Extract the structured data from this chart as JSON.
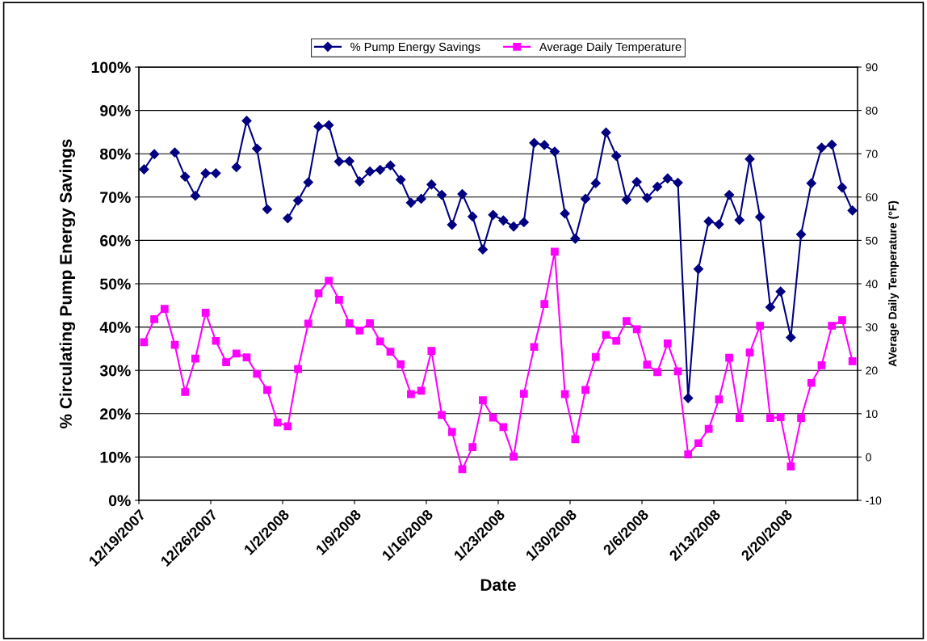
{
  "chart_data": {
    "type": "line",
    "xlabel": "Date",
    "ylabel": "% Circulating Pump Energy Savings",
    "y2label": "AVerage Daily Temperature (°F)",
    "x": [
      "2007-12-19T12:00",
      "2007-12-20T12:00",
      "2007-12-21T12:00",
      "2007-12-22T12:00",
      "2007-12-23T12:00",
      "2007-12-24T12:00",
      "2007-12-25T12:00",
      "2007-12-26T12:00",
      "2007-12-27T12:00",
      "2007-12-28T12:00",
      "2007-12-29T12:00",
      "2007-12-30T12:00",
      "2007-12-31T12:00",
      "2008-01-01T12:00",
      "2008-01-02T12:00",
      "2008-01-03T12:00",
      "2008-01-04T12:00",
      "2008-01-05T12:00",
      "2008-01-06T12:00",
      "2008-01-07T12:00",
      "2008-01-08T12:00",
      "2008-01-09T12:00",
      "2008-01-10T12:00",
      "2008-01-11T12:00",
      "2008-01-12T12:00",
      "2008-01-13T12:00",
      "2008-01-14T12:00",
      "2008-01-15T12:00",
      "2008-01-16T12:00",
      "2008-01-17T12:00",
      "2008-01-18T12:00",
      "2008-01-19T12:00",
      "2008-01-20T12:00",
      "2008-01-21T12:00",
      "2008-01-22T12:00",
      "2008-01-23T12:00",
      "2008-01-24T12:00",
      "2008-01-25T12:00",
      "2008-01-26T12:00",
      "2008-01-27T12:00",
      "2008-01-28T12:00",
      "2008-01-29T12:00",
      "2008-01-30T12:00",
      "2008-01-31T12:00",
      "2008-02-01T12:00",
      "2008-02-02T12:00",
      "2008-02-03T12:00",
      "2008-02-04T12:00",
      "2008-02-05T12:00",
      "2008-02-06T12:00",
      "2008-02-07T12:00",
      "2008-02-08T12:00",
      "2008-02-09T12:00",
      "2008-02-10T12:00",
      "2008-02-11T12:00",
      "2008-02-12T12:00",
      "2008-02-13T12:00",
      "2008-02-14T12:00",
      "2008-02-15T12:00",
      "2008-02-16T12:00",
      "2008-02-17T12:00",
      "2008-02-18T12:00",
      "2008-02-19T12:00",
      "2008-02-20T12:00",
      "2008-02-21T12:00",
      "2008-02-22T12:00",
      "2008-02-23T12:00",
      "2008-02-24T12:00",
      "2008-02-25T12:00",
      "2008-02-26T12:00"
    ],
    "series": [
      {
        "name": "% Pump Energy Savings",
        "color": "#000080",
        "marker": "diamond",
        "values": [
          76.4,
          79.9,
          null,
          80.3,
          74.7,
          70.3,
          75.5,
          75.5,
          null,
          76.9,
          87.6,
          81.2,
          67.2,
          null,
          65.1,
          69.2,
          73.4,
          86.3,
          86.6,
          78.2,
          78.3,
          73.6,
          75.9,
          76.3,
          77.3,
          74.0,
          68.7,
          69.6,
          72.9,
          70.5,
          63.6,
          70.7,
          65.5,
          57.9,
          65.9,
          64.6,
          63.2,
          64.2,
          82.5,
          82.0,
          80.5,
          66.2,
          60.4,
          69.6,
          73.2,
          84.9,
          79.5,
          69.4,
          73.5,
          69.8,
          72.4,
          74.3,
          73.3,
          23.6,
          53.4,
          64.4,
          63.7,
          70.5,
          64.7,
          78.8,
          65.4,
          44.6,
          48.2,
          37.6,
          61.4,
          73.2,
          81.4,
          82.1,
          72.2,
          66.9
        ]
      },
      {
        "name": "Average Daily Temperature",
        "color": "#ff00ff",
        "marker": "square",
        "axis": "y2",
        "values": [
          26.5,
          31.8,
          34.2,
          25.9,
          15.0,
          22.7,
          33.3,
          26.8,
          21.9,
          23.9,
          23.0,
          19.2,
          15.5,
          8.0,
          7.1,
          20.3,
          30.8,
          37.8,
          40.7,
          36.3,
          30.9,
          29.2,
          30.9,
          26.7,
          24.3,
          21.4,
          14.5,
          15.3,
          24.5,
          9.7,
          5.8,
          -2.8,
          2.3,
          13.1,
          9.1,
          6.9,
          0.1,
          14.6,
          25.4,
          35.3,
          47.4,
          14.5,
          4.1,
          15.5,
          23.1,
          28.2,
          26.8,
          31.4,
          29.5,
          21.3,
          19.6,
          26.2,
          19.8,
          0.6,
          3.2,
          6.5,
          13.3,
          22.9,
          9.0,
          24.1,
          30.3,
          9.0,
          9.2,
          -2.2,
          9.0,
          17.1,
          21.2,
          30.3,
          31.6,
          22.1
        ]
      }
    ],
    "xlim": [
      "2007-12-19",
      "2008-02-27"
    ],
    "xticks": [
      {
        "value": "2007-12-19",
        "label": "12/19/2007"
      },
      {
        "value": "2007-12-26",
        "label": "12/26/2007"
      },
      {
        "value": "2008-01-02",
        "label": "1/2/2008"
      },
      {
        "value": "2008-01-09",
        "label": "1/9/2008"
      },
      {
        "value": "2008-01-16",
        "label": "1/16/2008"
      },
      {
        "value": "2008-01-23",
        "label": "1/23/2008"
      },
      {
        "value": "2008-01-30",
        "label": "1/30/2008"
      },
      {
        "value": "2008-02-06",
        "label": "2/6/2008"
      },
      {
        "value": "2008-02-13",
        "label": "2/13/2008"
      },
      {
        "value": "2008-02-20",
        "label": "2/20/2008"
      }
    ],
    "ylim": [
      0,
      100
    ],
    "yticks": [
      {
        "value": 0,
        "label": "0%"
      },
      {
        "value": 10,
        "label": "10%"
      },
      {
        "value": 20,
        "label": "20%"
      },
      {
        "value": 30,
        "label": "30%"
      },
      {
        "value": 40,
        "label": "40%"
      },
      {
        "value": 50,
        "label": "50%"
      },
      {
        "value": 60,
        "label": "60%"
      },
      {
        "value": 70,
        "label": "70%"
      },
      {
        "value": 80,
        "label": "80%"
      },
      {
        "value": 90,
        "label": "90%"
      },
      {
        "value": 100,
        "label": "100%"
      }
    ],
    "y2lim": [
      -10,
      90
    ],
    "y2ticks": [
      -10,
      0,
      10,
      20,
      30,
      40,
      50,
      60,
      70,
      80,
      90
    ],
    "grid": "y",
    "legend": "top",
    "line_style": "solid"
  }
}
